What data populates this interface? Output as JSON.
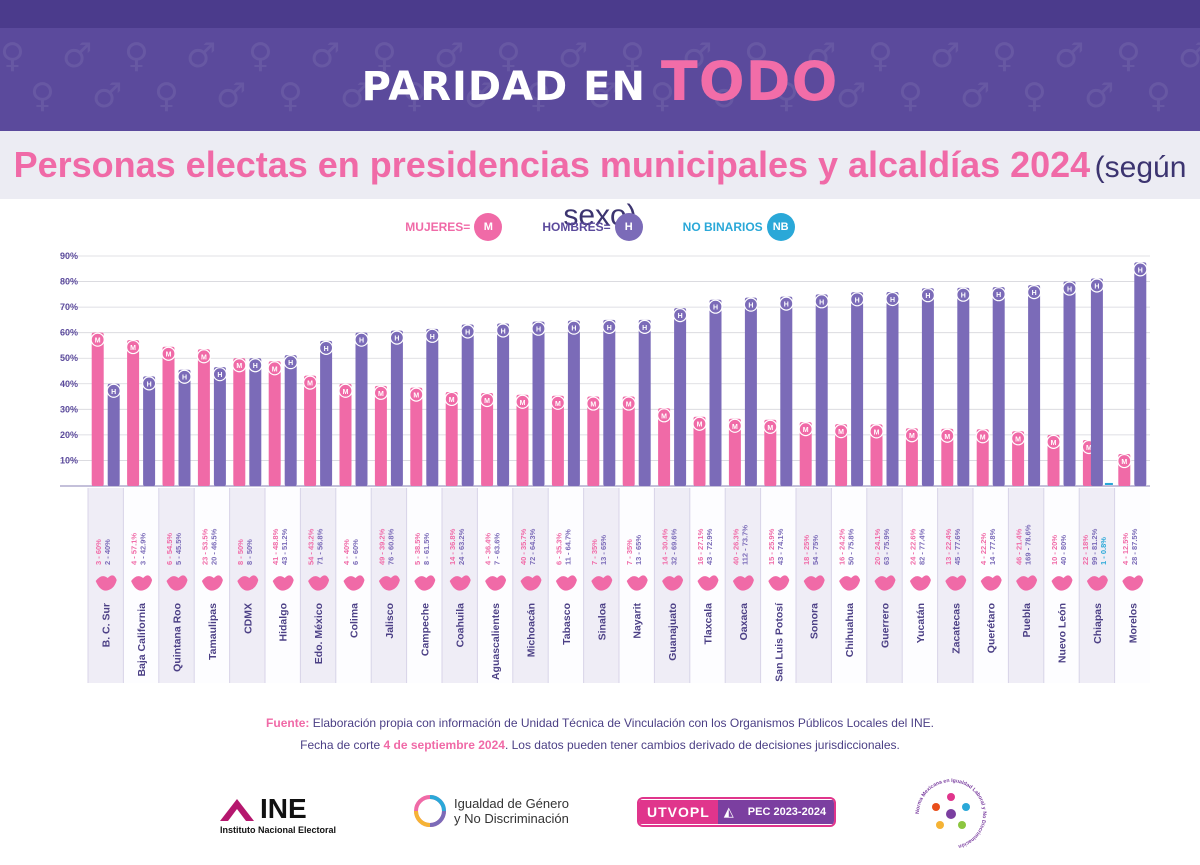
{
  "header": {
    "brand_prefix": "PARIDAD EN ",
    "brand_accent": "TODO",
    "title_bold": "Personas electas en presidencias municipales y alcaldías 2024",
    "title_light": "(según sexo)"
  },
  "legend": {
    "women_label": "MUJERES=",
    "women_badge": "M",
    "men_label": "HOMBRES=",
    "men_badge": "H",
    "nb_label": "NO BINARIOS",
    "nb_badge": "NB"
  },
  "colors": {
    "women": "#f06aa7",
    "men": "#7b6bb8",
    "nb": "#2aa8d8",
    "band_dark": "#5b4a9c"
  },
  "chart_data": {
    "type": "bar",
    "ylim": [
      0,
      90
    ],
    "yticks": [
      "10%",
      "20%",
      "30%",
      "40%",
      "50%",
      "60%",
      "70%",
      "80%",
      "90%"
    ],
    "categories": [
      "B. C. Sur",
      "Baja California",
      "Quintana Roo",
      "Tamaulipas",
      "CDMX",
      "Hidalgo",
      "Edo. México",
      "Colima",
      "Jalisco",
      "Campeche",
      "Coahuila",
      "Aguascalientes",
      "Michoacán",
      "Tabasco",
      "Sinaloa",
      "Nayarit",
      "Guanajuato",
      "Tlaxcala",
      "Oaxaca",
      "San Luis Potosí",
      "Sonora",
      "Chihuahua",
      "Guerrero",
      "Yucatán",
      "Zacatecas",
      "Querétaro",
      "Puebla",
      "Nuevo León",
      "Chiapas",
      "Morelos"
    ],
    "series": [
      {
        "name": "MUJERES",
        "values": [
          60,
          57.1,
          54.5,
          53.5,
          50,
          48.8,
          43.2,
          40,
          39.2,
          38.5,
          36.8,
          36.4,
          35.7,
          35.3,
          35,
          35,
          30.4,
          27.1,
          26.3,
          25.9,
          25,
          24.2,
          24.1,
          22.6,
          22.4,
          22.2,
          21.4,
          20,
          18,
          12.5
        ]
      },
      {
        "name": "HOMBRES",
        "values": [
          40,
          42.9,
          45.5,
          46.5,
          50,
          51.2,
          56.8,
          60,
          60.8,
          61.5,
          63.2,
          63.6,
          64.3,
          64.7,
          65,
          65,
          69.6,
          72.9,
          73.7,
          74.1,
          75,
          75.8,
          75.9,
          77.4,
          77.6,
          77.8,
          78.6,
          80,
          81.2,
          87.5
        ]
      },
      {
        "name": "NO BINARIOS",
        "values": [
          null,
          null,
          null,
          null,
          null,
          null,
          null,
          null,
          null,
          null,
          null,
          null,
          null,
          null,
          null,
          null,
          null,
          null,
          null,
          null,
          null,
          null,
          null,
          null,
          null,
          null,
          null,
          null,
          0.8,
          null
        ]
      }
    ],
    "labels_women": [
      "3 - 60%",
      "4 - 57.1%",
      "6 - 54.5%",
      "23 - 53.5%",
      "8 - 50%",
      "41 - 48.8%",
      "54 - 43.2%",
      "4 - 40%",
      "49 - 39.2%",
      "5 - 38.5%",
      "14 - 36.8%",
      "4 - 36.4%",
      "40 - 35.7%",
      "6 - 35.3%",
      "7 - 35%",
      "7 - 35%",
      "14 - 30.4%",
      "16 - 27.1%",
      "40 - 26.3%",
      "15 - 25.9%",
      "18 - 25%",
      "16 - 24.2%",
      "20 - 24.1%",
      "24 - 22.6%",
      "13 - 22.4%",
      "4 - 22.2%",
      "46 - 21.4%",
      "10 - 20%",
      "22 - 18%",
      "4 - 12.5%"
    ],
    "labels_men": [
      "2 - 40%",
      "3 - 42.9%",
      "5 - 45.5%",
      "20 - 46.5%",
      "8 - 50%",
      "43 - 51.2%",
      "71 - 56.8%",
      "6 - 60%",
      "76 - 60.8%",
      "8 - 61.5%",
      "24 - 63.2%",
      "7 - 63.6%",
      "72 - 64.3%",
      "11 - 64.7%",
      "13 - 65%",
      "13 - 65%",
      "32 - 69.6%",
      "43 - 72.9%",
      "112 - 73.7%",
      "43 - 74.1%",
      "54 - 75%",
      "50 - 75.8%",
      "63 - 75.9%",
      "82 - 77.4%",
      "45 - 77.6%",
      "14 - 77.8%",
      "169 - 78.6%",
      "40 - 80%",
      "99 - 81.2%",
      "28 - 87.5%"
    ],
    "labels_nb": [
      null,
      null,
      null,
      null,
      null,
      null,
      null,
      null,
      null,
      null,
      null,
      null,
      null,
      null,
      null,
      null,
      null,
      null,
      null,
      null,
      null,
      null,
      null,
      null,
      null,
      null,
      null,
      null,
      "1 - 0.8%",
      null
    ]
  },
  "footer": {
    "source_label": "Fuente:",
    "source_text": " Elaboración propia con información de Unidad Técnica de Vinculación con los Organismos Públicos Locales del INE.",
    "date_prefix": "Fecha de corte ",
    "date_value": "4 de septiembre 2024",
    "date_suffix": ". Los datos pueden tener cambios derivado de decisiones jurisdiccionales."
  },
  "logos": {
    "ine_name": "INE",
    "ine_sub": "Instituto Nacional Electoral",
    "igualdad_l1": "Igualdad de Género",
    "igualdad_l2": "y No Discriminación",
    "utvopl": "UTVOPL",
    "pec": "PEC 2023-2024",
    "norma": "Norma Mexicana en Igualdad Laboral y No Discriminación"
  }
}
